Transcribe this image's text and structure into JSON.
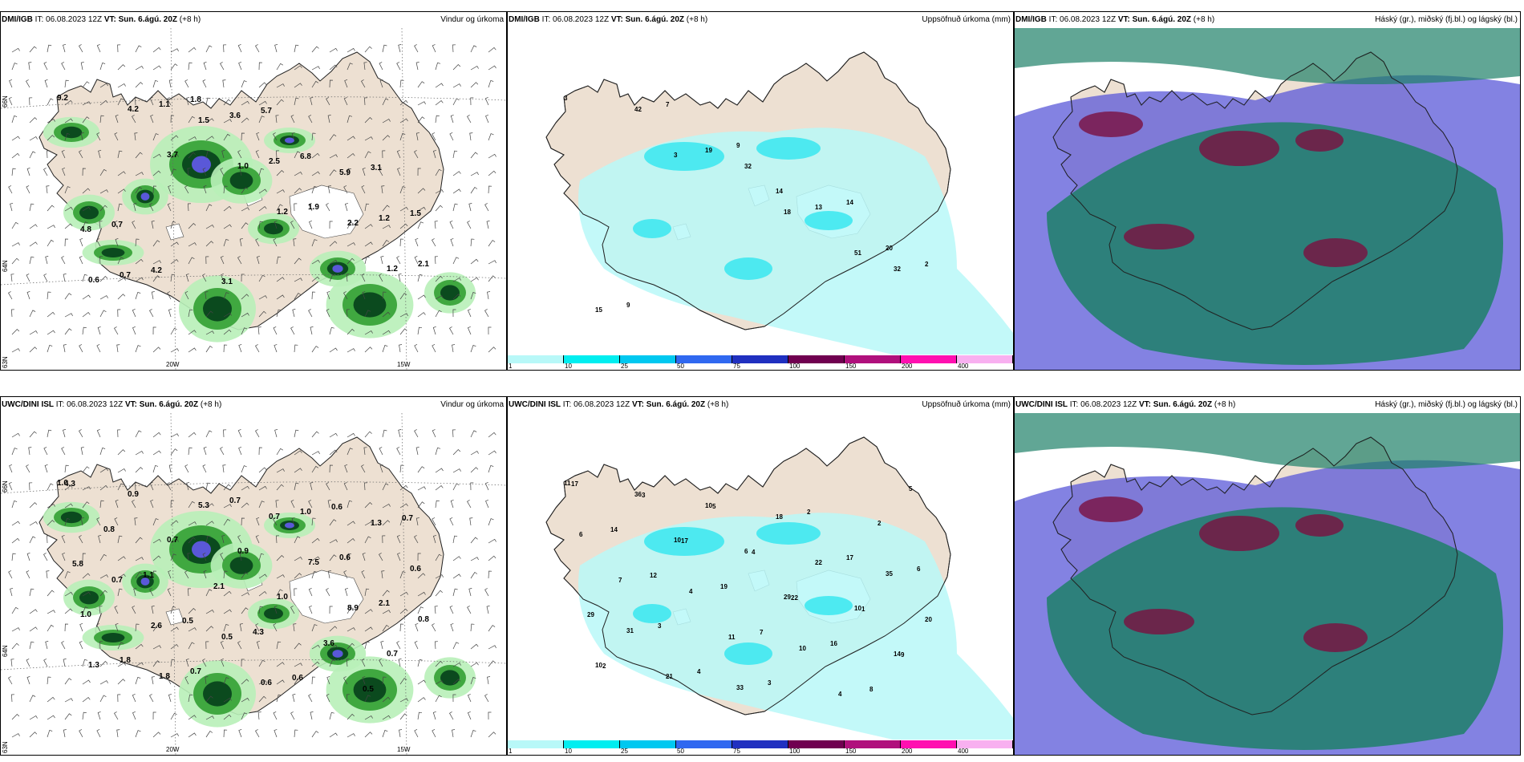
{
  "panels": [
    {
      "source": "DMI/IGB",
      "it": "IT: 06.08.2023 12Z",
      "vt": "VT: Sun. 6.ágú. 20Z",
      "lead": "(+8 h)",
      "product": "Vindur og úrkoma"
    },
    {
      "source": "DMI/IGB",
      "it": "IT: 06.08.2023 12Z",
      "vt": "VT: Sun. 6.ágú. 20Z",
      "lead": "(+8 h)",
      "product": "Uppsöfnuð úrkoma (mm)"
    },
    {
      "source": "DMI/IGB",
      "it": "IT: 06.08.2023 12Z",
      "vt": "VT: Sun. 6.ágú. 20Z",
      "lead": "(+8 h)",
      "product": "Háský (gr.), miðský (fj.bl.) og lágský (bl.)"
    },
    {
      "source": "UWC/DINI ISL",
      "it": "IT: 06.08.2023 12Z",
      "vt": "VT: Sun. 6.ágú. 20Z",
      "lead": "(+8 h)",
      "product": "Vindur og úrkoma"
    },
    {
      "source": "UWC/DINI ISL",
      "it": "IT: 06.08.2023 12Z",
      "vt": "VT: Sun. 6.ágú. 20Z",
      "lead": "(+8 h)",
      "product": "Uppsöfnuð úrkoma (mm)"
    },
    {
      "source": "UWC/DINI ISL",
      "it": "IT: 06.08.2023 12Z",
      "vt": "VT: Sun. 6.ágú. 20Z",
      "lead": "(+8 h)",
      "product": "Háský (gr.), miðský (fj.bl.) og lágský (bl.)"
    }
  ],
  "axes": {
    "lat": [
      "66N",
      "64N",
      "63N"
    ],
    "lon": [
      "20W",
      "15W"
    ]
  },
  "colorbar": {
    "ticks": [
      "1",
      "10",
      "25",
      "50",
      "75",
      "100",
      "150",
      "200",
      "400"
    ],
    "colors": [
      "#b8f8f8",
      "#00eef0",
      "#00c8f0",
      "#3068f0",
      "#2030c0",
      "#700050",
      "#b0107c",
      "#ff10b0",
      "#f8b0f0"
    ]
  },
  "colors": {
    "land": "#ede0d2",
    "rain_light": "#b8f0b8",
    "rain_mid": "#40a840",
    "rain_heavy": "#0b4a1e",
    "rain_core": "#5a58d8",
    "precip_light": "#b8f8f8",
    "precip_mid": "#40e8f0",
    "cloud_high": "#5a58d8",
    "cloud_mid": "#7a1040",
    "cloud_low": "#1e8068"
  },
  "wind_values": {
    "dmi": [
      "9.2",
      "3.7",
      "1.2",
      "1.2",
      "4.2",
      "1.0",
      "2.2",
      "0.6",
      "1.5",
      "1.9",
      "2.1",
      "1.1",
      "2.5",
      "1.2",
      "0.7",
      "3.6",
      "5.9",
      "4.8",
      "1.8",
      "6.8",
      "1.5",
      "4.2",
      "5.7",
      "3.1",
      "0.7",
      "3.1"
    ],
    "uwc": [
      "1.0",
      "0.7",
      "1.0",
      "0.7",
      "0.9",
      "0.9",
      "8.9",
      "1.3",
      "5.3",
      "7.5",
      "0.8",
      "1.8",
      "0.7",
      "2.1",
      "1.8",
      "0.7",
      "0.6",
      "1.0",
      "0.7",
      "1.0",
      "0.6",
      "2.6",
      "0.6",
      "1.3",
      "0.7",
      "0.5",
      "0.6",
      "5.8",
      "0.5",
      "0.6",
      "0.7",
      "1.1",
      "4.3",
      "0.5",
      "0.8",
      "2.1",
      "3.6",
      "4.3"
    ]
  },
  "precip_values": {
    "dmi": [
      "3",
      "3",
      "18",
      "32",
      "42",
      "32",
      "51",
      "15",
      "19",
      "13",
      "2",
      "7",
      "14",
      "20",
      "9",
      "9",
      "14"
    ],
    "uwc": [
      "11",
      "10",
      "29",
      "14",
      "36",
      "6",
      "10",
      "10",
      "10",
      "22",
      "20",
      "21",
      "18",
      "35",
      "31",
      "33",
      "17",
      "29",
      "4",
      "2",
      "6",
      "3",
      "3",
      "2",
      "7",
      "11",
      "4",
      "6",
      "4",
      "10",
      "5",
      "12",
      "7",
      "8",
      "14",
      "19",
      "16",
      "17",
      "17",
      "22",
      "9",
      "3",
      "4",
      "1",
      "2",
      "5"
    ]
  }
}
